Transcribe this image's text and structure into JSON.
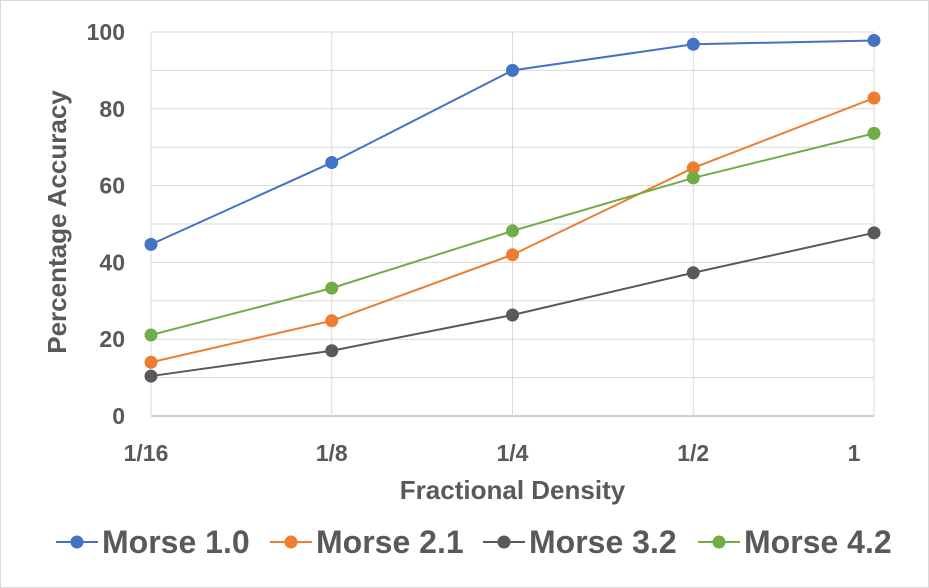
{
  "chart_data": {
    "type": "line",
    "title": "",
    "xlabel": "Fractional Density",
    "ylabel": "Percentage Accuracy",
    "categories": [
      "1/16",
      "1/8",
      "1/4",
      "1/2",
      "1"
    ],
    "ylim": [
      0,
      100
    ],
    "yticks": [
      0,
      20,
      40,
      60,
      80,
      100
    ],
    "grid": true,
    "legend_position": "bottom",
    "series": [
      {
        "name": "Morse 1.0",
        "color": "#4472C4",
        "values": [
          44.7,
          66.0,
          90.0,
          96.8,
          97.8
        ]
      },
      {
        "name": "Morse 2.1",
        "color": "#ED7D31",
        "values": [
          14.0,
          24.8,
          42.0,
          64.6,
          82.8
        ]
      },
      {
        "name": "Morse 3.2",
        "color": "#595959",
        "values": [
          10.4,
          17.0,
          26.3,
          37.3,
          47.7
        ]
      },
      {
        "name": "Morse 4.2",
        "color": "#70AD47",
        "values": [
          21.1,
          33.3,
          48.2,
          62.0,
          73.6
        ]
      }
    ]
  }
}
